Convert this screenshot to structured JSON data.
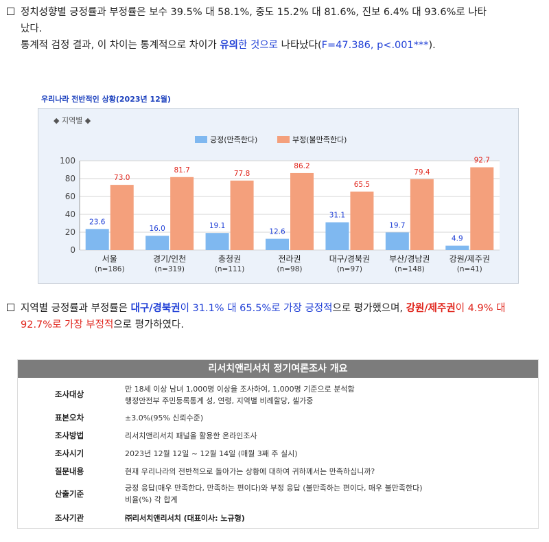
{
  "intro": {
    "line1": "정치성향별 긍정률과 부정률은 보수 39.5% 대 58.1%, 중도 15.2% 대 81.6%, 진보 6.4% 대 93.6%로 나타",
    "line2": "났다.",
    "line3_a": "통계적 검정 결과, 이 차이는 통계적으로 차이가 ",
    "line3_b": "유의",
    "line3_c": "한 것으로",
    "line3_d": " 나타났다(",
    "line3_e": "F=47.386, p<.001***",
    "line3_f": ")."
  },
  "chart_title": "우리나라 전반적인 상황(2023년 12월)",
  "chart_subtitle": "◆ 지역별 ◆",
  "chart_data": {
    "type": "bar",
    "categories": [
      "서울",
      "경기/인천",
      "충청권",
      "전라권",
      "대구/경북권",
      "부산/경남권",
      "강원/제주권"
    ],
    "category_n": [
      "(n=186)",
      "(n=319)",
      "(n=111)",
      "(n=98)",
      "(n=97)",
      "(n=148)",
      "(n=41)"
    ],
    "series": [
      {
        "name": "긍정(만족한다)",
        "color": "#7fb8f0",
        "label_color": "#1f3fd6",
        "values": [
          23.6,
          16.0,
          19.1,
          12.6,
          31.1,
          19.7,
          4.9
        ]
      },
      {
        "name": "부정(불만족한다)",
        "color": "#f4a07c",
        "label_color": "#e0241b",
        "values": [
          73.0,
          81.7,
          77.8,
          86.2,
          65.5,
          79.4,
          92.7
        ]
      }
    ],
    "yticks": [
      "0",
      "20",
      "40",
      "60",
      "80",
      "100"
    ],
    "ylim": [
      0,
      100
    ],
    "grid": true,
    "legend": "top-center"
  },
  "summary": {
    "a": "지역별 긍정률과 부정률은 ",
    "b": "대구/경북권",
    "c": "이 31.1% 대 65.5%로 가장 긍정적",
    "d": "으로 평가했으며, ",
    "e": "강원/제주권",
    "f": "이 4.9% 대 92.7%로 가장 부정적",
    "g": "으로 평가하였다."
  },
  "overview": {
    "title": "리서치앤리서치 정기여론조사 개요",
    "rows": [
      {
        "key": "조사대상",
        "v1": "만 18세 이상 남녀 1,000명 이상을 조사하여, 1,000명 기준으로 분석함",
        "v2": "행정안전부 주민등록통계 성, 연령, 지역별 비례할당, 셀가중"
      },
      {
        "key": "표본오차",
        "v1": "±3.0%(95% 신뢰수준)",
        "v2": ""
      },
      {
        "key": "조사방법",
        "v1": "리서치앤리서치 패널을 활용한 온라인조사",
        "v2": ""
      },
      {
        "key": "조사시기",
        "v1": "2023년 12월 12일 ~ 12월 14일 (매월 3째 주 실시)",
        "v2": ""
      },
      {
        "key": "질문내용",
        "v1": "현재 우리나라의 전반적으로 돌아가는 상황에 대하여 귀하께서는 만족하십니까?",
        "v2": ""
      },
      {
        "key": "산출기준",
        "v1": "긍정 응답(매우 만족한다, 만족하는 편이다)와 부정 응답 (불만족하는 편이다, 매우 불만족한다)",
        "v2": "비율(%) 각 합계"
      },
      {
        "key": "조사기관",
        "v1": "㈜리서치앤리서치 (대표이사: 노규형)",
        "v2": ""
      }
    ]
  }
}
